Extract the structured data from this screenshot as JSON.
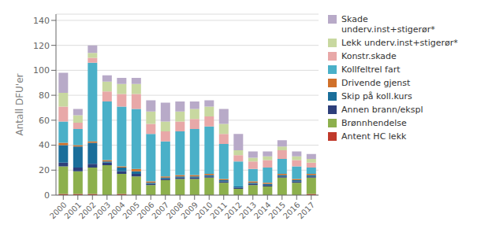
{
  "chart_data": {
    "type": "bar",
    "stacked": true,
    "ylabel": "Antall DFU'er",
    "categories": [
      "2000",
      "2001",
      "2002",
      "2003",
      "2004",
      "2005",
      "2006",
      "2007",
      "2008",
      "2009",
      "2010",
      "2011",
      "2012",
      "2013",
      "2014",
      "2015",
      "2016",
      "2017"
    ],
    "series": [
      {
        "name": "Antent HC lekk",
        "color": "#c0392b",
        "values": [
          1,
          1,
          1,
          0,
          1,
          0,
          0,
          0,
          0,
          0,
          0,
          0,
          0,
          0,
          0,
          0,
          0,
          1
        ]
      },
      {
        "name": "Brønnhendelse",
        "color": "#8db04d",
        "values": [
          22,
          18,
          21,
          24,
          16,
          15,
          8,
          12,
          13,
          13,
          14,
          10,
          5,
          8,
          7,
          14,
          10,
          13
        ]
      },
      {
        "name": "Annen brann/ekspl",
        "color": "#2e3f7a",
        "values": [
          3,
          3,
          3,
          2,
          2,
          2,
          1,
          1,
          1,
          1,
          1,
          1,
          1,
          1,
          1,
          1,
          1,
          1
        ]
      },
      {
        "name": "Skip på koll.kurs",
        "color": "#1a6e9a",
        "values": [
          14,
          17,
          17,
          1,
          3,
          2,
          1,
          1,
          1,
          1,
          1,
          1,
          1,
          1,
          1,
          1,
          1,
          1
        ]
      },
      {
        "name": "Drivende gjenst",
        "color": "#d0702a",
        "values": [
          2,
          1,
          1,
          1,
          1,
          2,
          1,
          1,
          1,
          1,
          1,
          1,
          0,
          1,
          1,
          1,
          1,
          1
        ]
      },
      {
        "name": "Kollfeltrel fart",
        "color": "#4ab0c8",
        "values": [
          17,
          13,
          63,
          47,
          48,
          48,
          38,
          28,
          35,
          37,
          38,
          28,
          20,
          10,
          12,
          12,
          10,
          5
        ]
      },
      {
        "name": "Konstr.skade",
        "color": "#e8a8a8",
        "values": [
          12,
          5,
          4,
          8,
          10,
          12,
          8,
          8,
          8,
          8,
          8,
          8,
          5,
          6,
          6,
          7,
          5,
          4
        ]
      },
      {
        "name": "Lekk underv.inst+stigerør*",
        "color": "#c8d8a0",
        "values": [
          11,
          6,
          4,
          8,
          8,
          8,
          10,
          8,
          8,
          8,
          8,
          8,
          4,
          3,
          3,
          3,
          3,
          3
        ]
      },
      {
        "name": "Skade\nunderv.inst+stigerør*",
        "color": "#b8aac8",
        "values": [
          16,
          5,
          6,
          5,
          5,
          5,
          9,
          15,
          8,
          6,
          5,
          12,
          13,
          5,
          4,
          5,
          4,
          4
        ]
      }
    ],
    "ylim": [
      0,
      145
    ],
    "yticks": [
      0,
      20,
      40,
      60,
      80,
      100,
      120,
      140
    ],
    "grid": true,
    "legend": "right"
  }
}
